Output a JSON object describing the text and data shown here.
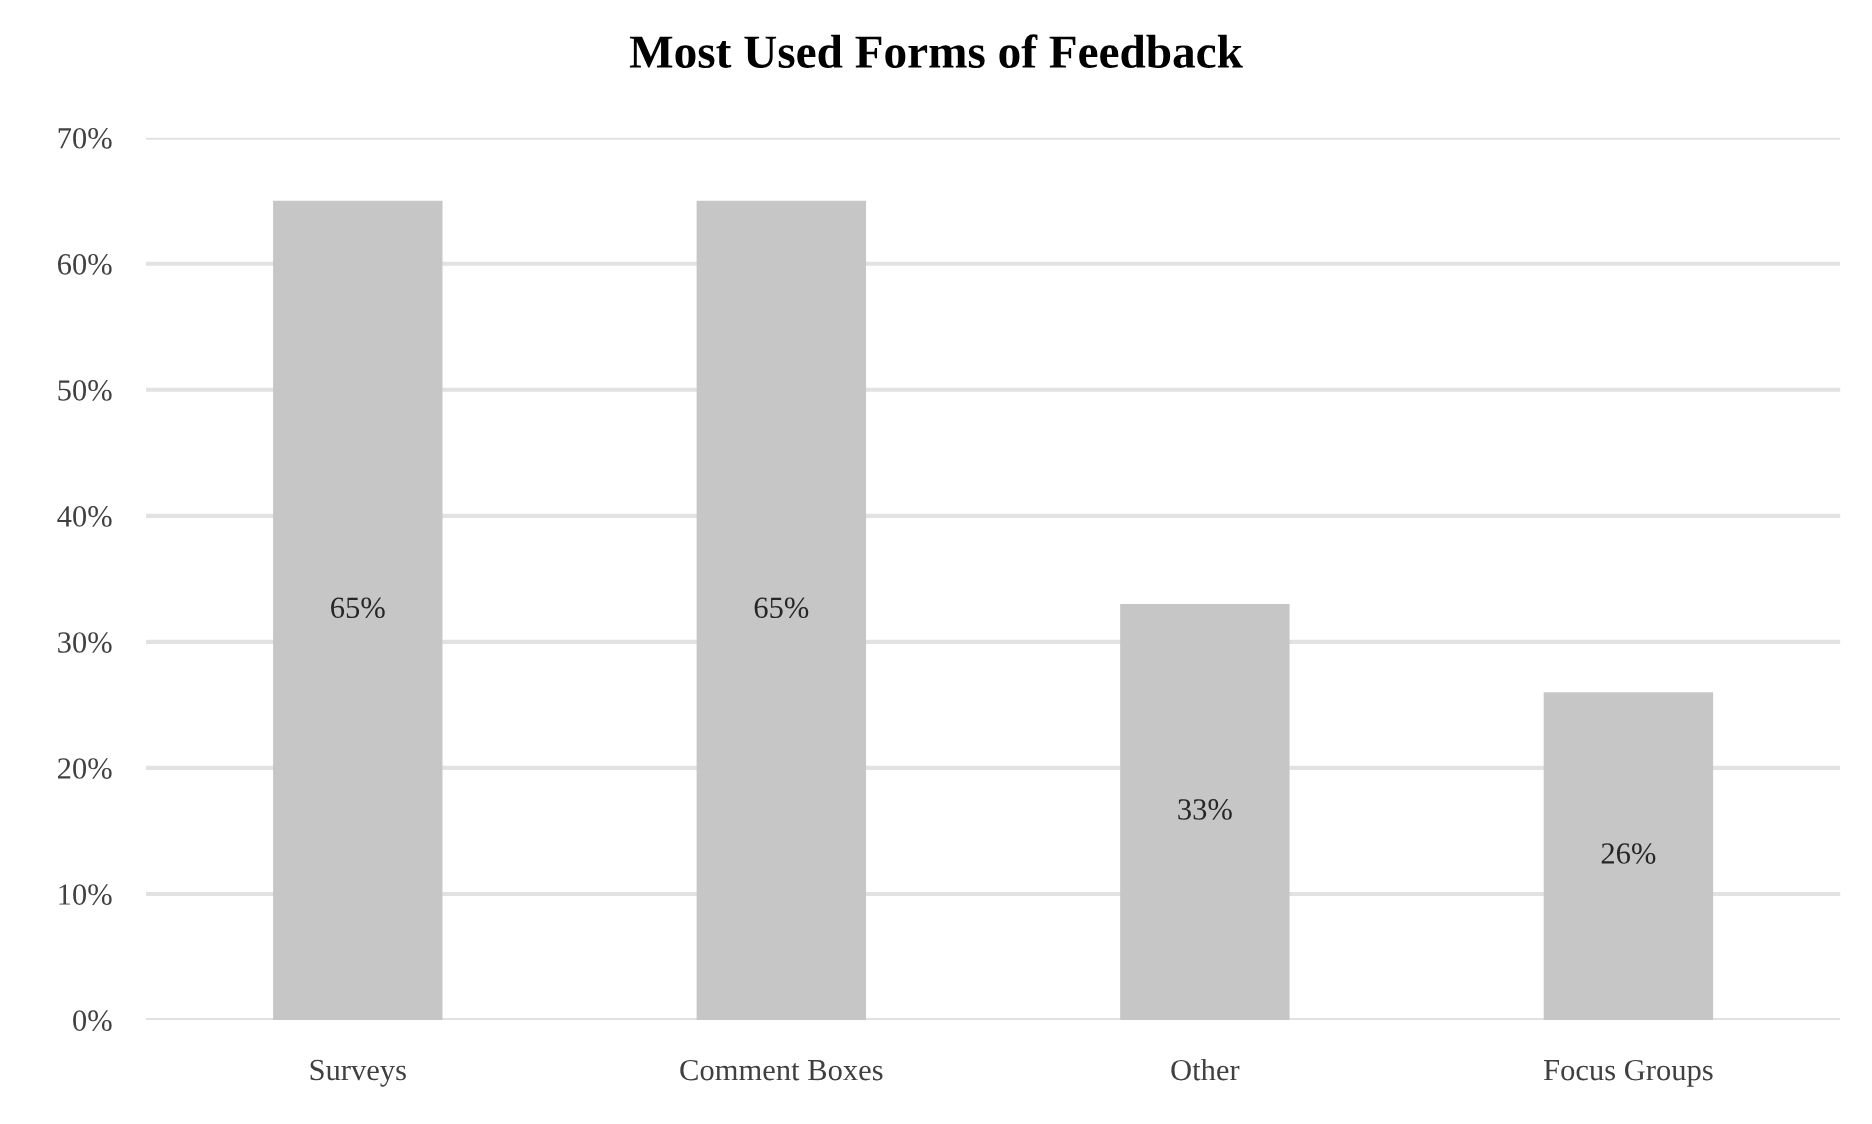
{
  "chart_data": {
    "type": "bar",
    "title": "Most Used Forms of Feedback",
    "categories": [
      "Surveys",
      "Comment Boxes",
      "Other",
      "Focus Groups"
    ],
    "values": [
      65,
      65,
      33,
      26
    ],
    "color": "#c6c6c6",
    "value_labels": [
      "65%",
      "65%",
      "33%",
      "26%"
    ],
    "ylim": [
      0,
      70
    ],
    "yticks": [
      {
        "value": 0,
        "label": "0%"
      },
      {
        "value": 10,
        "label": "10%"
      },
      {
        "value": 20,
        "label": "20%"
      },
      {
        "value": 30,
        "label": "30%"
      },
      {
        "value": 40,
        "label": "40%"
      },
      {
        "value": 50,
        "label": "50%"
      },
      {
        "value": 60,
        "label": "60%"
      },
      {
        "value": 70,
        "label": "70%"
      }
    ],
    "grid": "y",
    "legend": false
  }
}
